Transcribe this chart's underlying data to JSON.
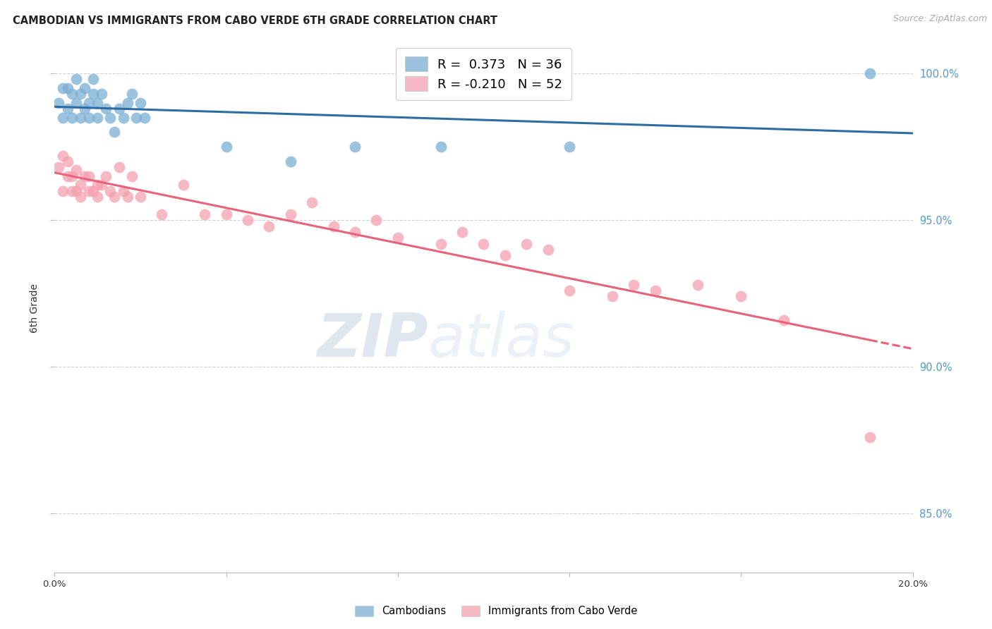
{
  "title": "CAMBODIAN VS IMMIGRANTS FROM CABO VERDE 6TH GRADE CORRELATION CHART",
  "source": "Source: ZipAtlas.com",
  "ylabel": "6th Grade",
  "ytick_values": [
    1.0,
    0.95,
    0.9,
    0.85
  ],
  "ytick_labels": [
    "100.0%",
    "95.0%",
    "90.0%",
    "85.0%"
  ],
  "xlim": [
    0.0,
    0.2
  ],
  "ylim": [
    0.83,
    1.01
  ],
  "legend_line1": "R =  0.373   N = 36",
  "legend_line2": "R = -0.210   N = 52",
  "blue_scatter_x": [
    0.001,
    0.002,
    0.002,
    0.003,
    0.003,
    0.004,
    0.004,
    0.005,
    0.005,
    0.006,
    0.006,
    0.007,
    0.007,
    0.008,
    0.008,
    0.009,
    0.009,
    0.01,
    0.01,
    0.011,
    0.012,
    0.013,
    0.014,
    0.015,
    0.016,
    0.017,
    0.018,
    0.019,
    0.02,
    0.021,
    0.04,
    0.055,
    0.07,
    0.09,
    0.12,
    0.19
  ],
  "blue_scatter_y": [
    0.99,
    0.985,
    0.995,
    0.988,
    0.995,
    0.985,
    0.993,
    0.99,
    0.998,
    0.985,
    0.993,
    0.988,
    0.995,
    0.99,
    0.985,
    0.993,
    0.998,
    0.99,
    0.985,
    0.993,
    0.988,
    0.985,
    0.98,
    0.988,
    0.985,
    0.99,
    0.993,
    0.985,
    0.99,
    0.985,
    0.975,
    0.97,
    0.975,
    0.975,
    0.975,
    1.0
  ],
  "pink_scatter_x": [
    0.001,
    0.002,
    0.002,
    0.003,
    0.003,
    0.004,
    0.004,
    0.005,
    0.005,
    0.006,
    0.006,
    0.007,
    0.008,
    0.008,
    0.009,
    0.01,
    0.01,
    0.011,
    0.012,
    0.013,
    0.014,
    0.015,
    0.016,
    0.017,
    0.018,
    0.02,
    0.025,
    0.03,
    0.035,
    0.04,
    0.045,
    0.05,
    0.055,
    0.06,
    0.065,
    0.07,
    0.075,
    0.08,
    0.09,
    0.095,
    0.1,
    0.105,
    0.11,
    0.115,
    0.12,
    0.13,
    0.135,
    0.14,
    0.15,
    0.16,
    0.17,
    0.19
  ],
  "pink_scatter_y": [
    0.968,
    0.972,
    0.96,
    0.965,
    0.97,
    0.96,
    0.965,
    0.96,
    0.967,
    0.962,
    0.958,
    0.965,
    0.96,
    0.965,
    0.96,
    0.962,
    0.958,
    0.962,
    0.965,
    0.96,
    0.958,
    0.968,
    0.96,
    0.958,
    0.965,
    0.958,
    0.952,
    0.962,
    0.952,
    0.952,
    0.95,
    0.948,
    0.952,
    0.956,
    0.948,
    0.946,
    0.95,
    0.944,
    0.942,
    0.946,
    0.942,
    0.938,
    0.942,
    0.94,
    0.926,
    0.924,
    0.928,
    0.926,
    0.928,
    0.924,
    0.916,
    0.876
  ],
  "blue_color": "#7BAFD4",
  "pink_color": "#F4A0B0",
  "blue_line_color": "#2E6DA4",
  "pink_line_color": "#E8637A",
  "watermark_zip": "ZIP",
  "watermark_atlas": "atlas",
  "grid_color": "#CCCCCC",
  "right_axis_color": "#5599CC",
  "axis_label_color": "#333333",
  "title_fontsize": 10.5,
  "source_fontsize": 9
}
